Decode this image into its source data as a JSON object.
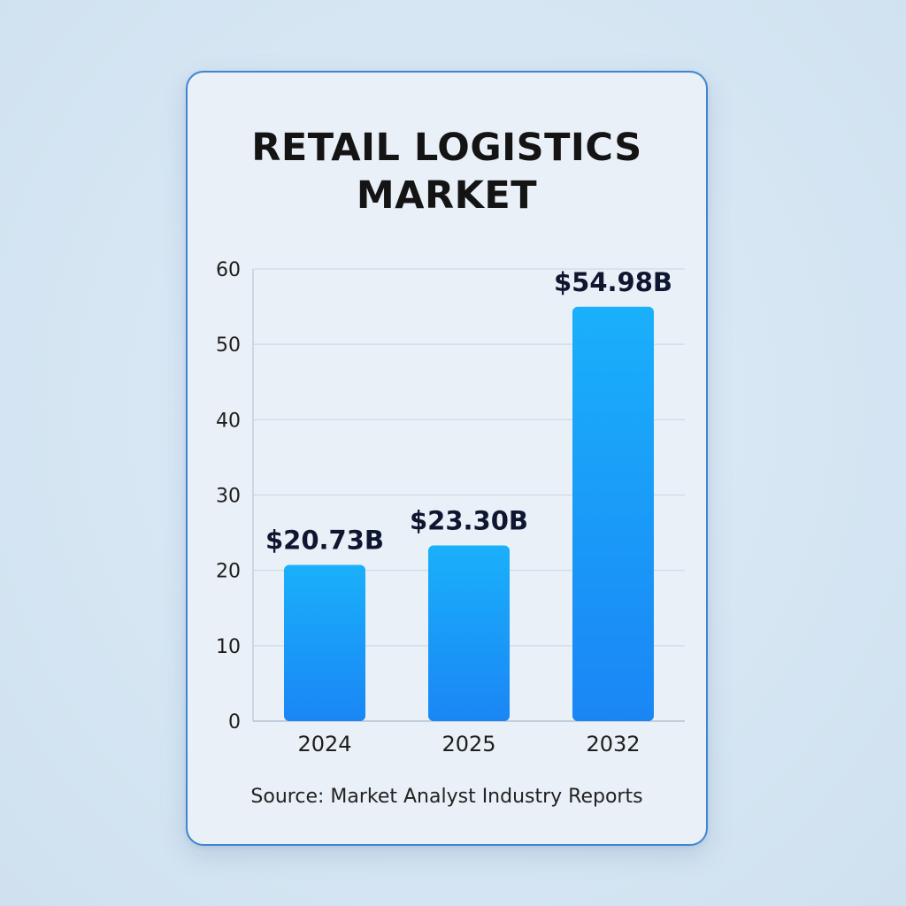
{
  "chart_data": {
    "type": "bar",
    "title_lines": [
      "RETAIL LOGISTICS",
      "MARKET"
    ],
    "categories": [
      "2024",
      "2025",
      "2032"
    ],
    "values": [
      20.73,
      23.3,
      54.98
    ],
    "data_labels": [
      "$20.73B",
      "$23.30B",
      "$54.98B"
    ],
    "yticks": [
      "0",
      "10",
      "20",
      "30",
      "40",
      "50",
      "60"
    ],
    "ylim": [
      0,
      60
    ],
    "grid": true,
    "bar_color_top": "#1ab0fb",
    "bar_color_bottom": "#1a86f5",
    "source": "Source: Market Analyst Industry Reports"
  }
}
